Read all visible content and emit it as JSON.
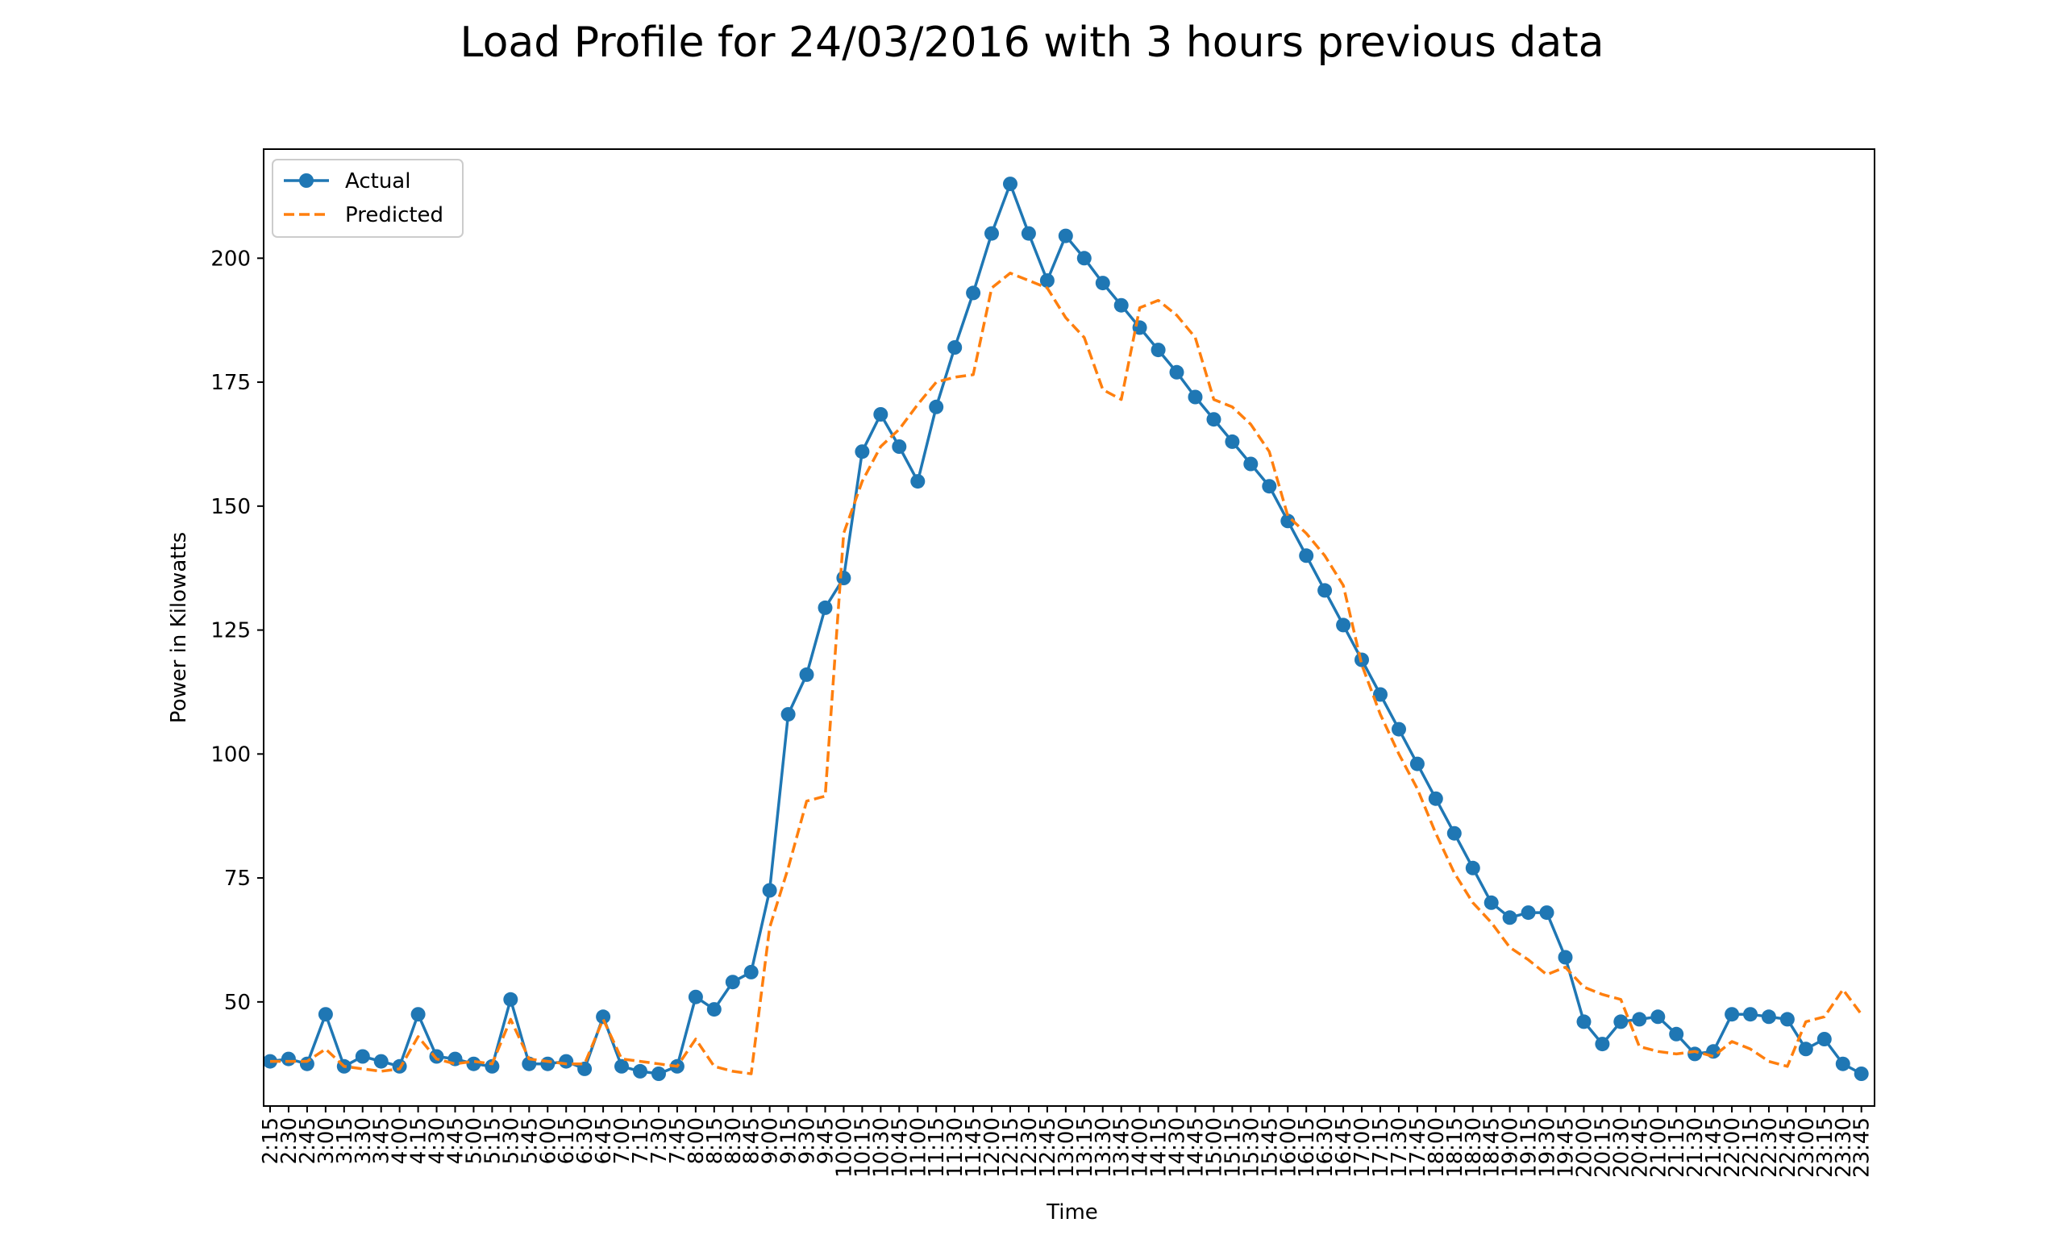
{
  "colors": {
    "actual": "#1f77b4",
    "predicted": "#ff7f0e",
    "axis": "#000000",
    "legend_border": "#cccccc"
  },
  "chart_data": {
    "type": "line",
    "title": "Load Profile for 24/03/2016 with 3 hours previous data",
    "xlabel": "Time",
    "ylabel": "Power in Kilowatts",
    "ylim": [
      29,
      222
    ],
    "yticks": [
      50,
      75,
      100,
      125,
      150,
      175,
      200
    ],
    "grid": false,
    "legend_position": "top-left",
    "categories": [
      "2:15",
      "2:30",
      "2:45",
      "3:00",
      "3:15",
      "3:30",
      "3:45",
      "4:00",
      "4:15",
      "4:30",
      "4:45",
      "5:00",
      "5:15",
      "5:30",
      "5:45",
      "6:00",
      "6:15",
      "6:30",
      "6:45",
      "7:00",
      "7:15",
      "7:30",
      "7:45",
      "8:00",
      "8:15",
      "8:30",
      "8:45",
      "9:00",
      "9:15",
      "9:30",
      "9:45",
      "10:00",
      "10:15",
      "10:30",
      "10:45",
      "11:00",
      "11:15",
      "11:30",
      "11:45",
      "12:00",
      "12:15",
      "12:30",
      "12:45",
      "13:00",
      "13:15",
      "13:30",
      "13:45",
      "14:00",
      "14:15",
      "14:30",
      "14:45",
      "15:00",
      "15:15",
      "15:30",
      "15:45",
      "16:00",
      "16:15",
      "16:30",
      "16:45",
      "17:00",
      "17:15",
      "17:30",
      "17:45",
      "18:00",
      "18:15",
      "18:30",
      "18:45",
      "19:00",
      "19:15",
      "19:30",
      "19:45",
      "20:00",
      "20:15",
      "20:30",
      "20:45",
      "21:00",
      "21:15",
      "21:30",
      "21:45",
      "22:00",
      "22:15",
      "22:30",
      "22:45",
      "23:00",
      "23:15",
      "23:30",
      "23:45"
    ],
    "series": [
      {
        "name": "Actual",
        "style": "solid-marker",
        "values": [
          38,
          38.5,
          37.5,
          47.5,
          37,
          39,
          38,
          37,
          47.5,
          39,
          38.5,
          37.5,
          37,
          50.5,
          37.5,
          37.5,
          38,
          36.5,
          47,
          37,
          36,
          35.5,
          37,
          51,
          48.5,
          54,
          56,
          72.5,
          108,
          116,
          129.5,
          135.5,
          161,
          168.5,
          162,
          155,
          170,
          182,
          193,
          205,
          215,
          205,
          195.5,
          204.5,
          200,
          195,
          190.5,
          186,
          181.5,
          177,
          172,
          167.5,
          163,
          158.5,
          154,
          147,
          140,
          133,
          126,
          119,
          112,
          105,
          98,
          91,
          84,
          77,
          70,
          67,
          68,
          68,
          59,
          46,
          41.5,
          46,
          46.5,
          47,
          43.5,
          39.5,
          40,
          47.5,
          47.5,
          47,
          46.5,
          40.5,
          42.5,
          37.5,
          35.5
        ]
      },
      {
        "name": "Predicted",
        "style": "dashed",
        "values": [
          38,
          38,
          38,
          40.5,
          37,
          36.5,
          36,
          36.5,
          43,
          38.5,
          37.5,
          38,
          37.5,
          46.5,
          38.5,
          38,
          37.5,
          37.5,
          46.5,
          38.5,
          38,
          37.5,
          37,
          42.5,
          37,
          36,
          35.5,
          65,
          77,
          90.5,
          91.5,
          144.5,
          155,
          162,
          165.5,
          170.5,
          175,
          176,
          176.5,
          194,
          197,
          195.5,
          194,
          188,
          184,
          173.5,
          171.5,
          190,
          191.5,
          188.5,
          184,
          171.5,
          170,
          166.5,
          161,
          148,
          144.5,
          140,
          134,
          118,
          108,
          100,
          93,
          84,
          76,
          70,
          66,
          61,
          58.5,
          55.5,
          57,
          53,
          51.5,
          50.5,
          41,
          40,
          39.5,
          40,
          39,
          42,
          40.5,
          38,
          37,
          46,
          47,
          52.5,
          47.5
        ]
      }
    ]
  }
}
